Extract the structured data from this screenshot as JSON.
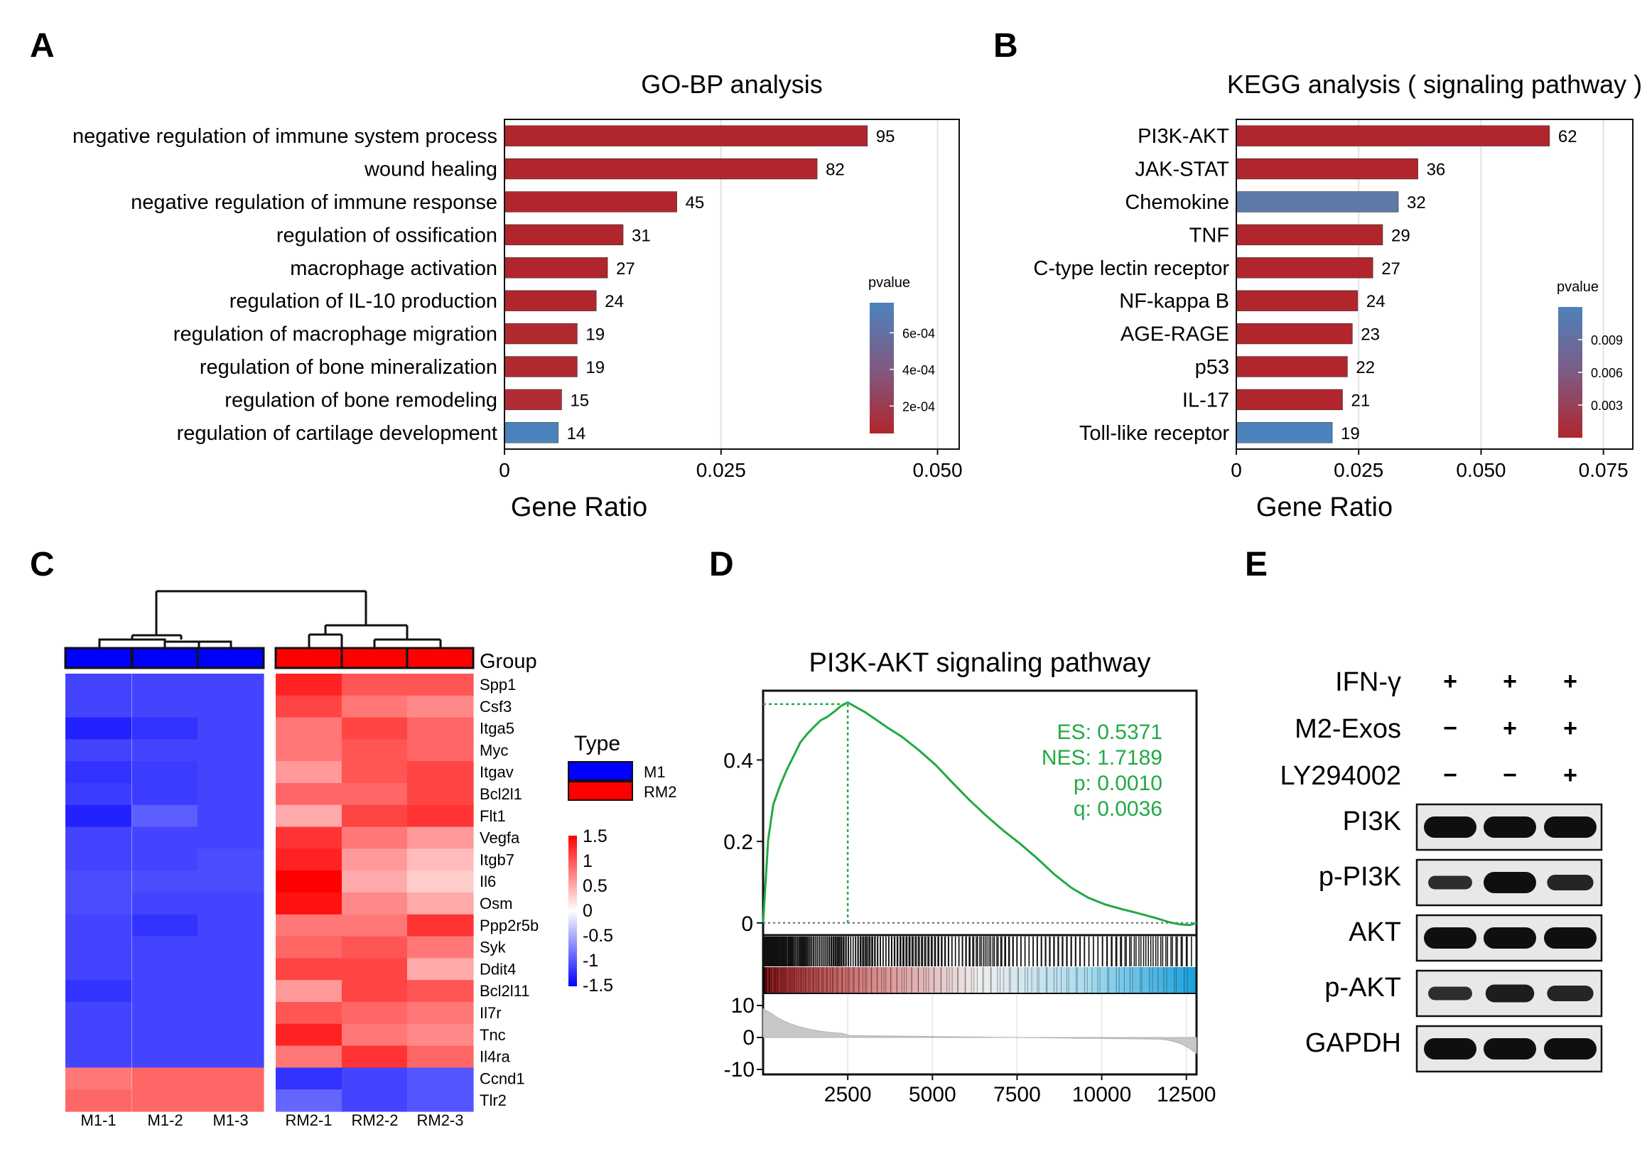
{
  "panel_labels": {
    "a": "A",
    "b": "B",
    "c": "C",
    "d": "D",
    "e": "E"
  },
  "chart_data": [
    {
      "id": "go",
      "type": "bar",
      "title": "GO-BP analysis",
      "xlabel": "Gene Ratio",
      "ylabel": "",
      "orientation": "horizontal",
      "xlim": [
        0,
        0.0525
      ],
      "xticks": [
        0,
        0.025,
        0.05
      ],
      "xtick_labels": [
        "0",
        "0.025",
        "0.050"
      ],
      "categories": [
        "negative regulation of immune system process",
        "wound healing",
        "negative regulation of immune response",
        "regulation of ossification",
        "macrophage activation",
        "regulation of IL-10 production",
        "regulation of macrophage migration",
        "regulation of bone mineralization",
        "regulation of bone remodeling",
        "regulation of cartilage development"
      ],
      "values": [
        0.0419,
        0.0361,
        0.0199,
        0.0137,
        0.0119,
        0.0106,
        0.0084,
        0.0084,
        0.0066,
        0.0062
      ],
      "counts": [
        "95",
        "82",
        "45",
        "31",
        "27",
        "24",
        "19",
        "19",
        "15",
        "14"
      ],
      "bar_colors": [
        "#b0262c",
        "#b0262c",
        "#b0262c",
        "#b0262c",
        "#b0262c",
        "#b0262c",
        "#b12a30",
        "#b12a30",
        "#b22d33",
        "#4c83bc"
      ],
      "legend": {
        "title": "pvalue",
        "labels": [
          "6e-04",
          "4e-04",
          "2e-04"
        ],
        "stops": [
          0.23,
          0.51,
          0.79
        ],
        "colors": [
          "#4c83bc",
          "#b0262c"
        ],
        "position": "right"
      },
      "grid": true
    },
    {
      "id": "kegg",
      "type": "bar",
      "title": "KEGG analysis ( signaling pathway )",
      "xlabel": "Gene Ratio",
      "ylabel": "",
      "orientation": "horizontal",
      "xlim": [
        0,
        0.081
      ],
      "xticks": [
        0,
        0.025,
        0.05,
        0.075
      ],
      "xtick_labels": [
        "0",
        "0.025",
        "0.050",
        "0.075"
      ],
      "categories": [
        "PI3K-AKT",
        "JAK-STAT",
        "Chemokine",
        "TNF",
        "C-type lectin receptor",
        "NF-kappa B",
        "AGE-RAGE",
        "p53",
        "IL-17",
        "Toll-like receptor"
      ],
      "values": [
        0.064,
        0.0371,
        0.0331,
        0.0299,
        0.0279,
        0.0248,
        0.0237,
        0.0227,
        0.0217,
        0.0196
      ],
      "counts": [
        "62",
        "36",
        "32",
        "29",
        "27",
        "24",
        "23",
        "22",
        "21",
        "19"
      ],
      "bar_colors": [
        "#b0262c",
        "#b0262c",
        "#5d7aa8",
        "#b0262c",
        "#b0262c",
        "#b0262c",
        "#b0262c",
        "#b0262c",
        "#b0262c",
        "#4c83bc"
      ],
      "legend": {
        "title": "pvalue",
        "labels": [
          "0.009",
          "0.006",
          "0.003"
        ],
        "stops": [
          0.25,
          0.5,
          0.75
        ],
        "colors": [
          "#4c83bc",
          "#b0262c"
        ],
        "position": "right"
      },
      "grid": true
    },
    {
      "id": "heatmap",
      "type": "heatmap",
      "rows": [
        "Spp1",
        "Csf3",
        "Itga5",
        "Myc",
        "Itgav",
        "Bcl2l1",
        "Flt1",
        "Vegfa",
        "Itgb7",
        "Il6",
        "Osm",
        "Ppp2r5b",
        "Syk",
        "Ddit4",
        "Bcl2l11",
        "Il7r",
        "Tnc",
        "Il4ra",
        "Ccnd1",
        "Tlr2"
      ],
      "columns": [
        "M1-1",
        "M1-2",
        "M1-3",
        "RM2-1",
        "RM2-2",
        "RM2-3"
      ],
      "values": [
        [
          -1.1,
          -1.1,
          -1.1,
          1.3,
          1.0,
          1.0
        ],
        [
          -1.1,
          -1.1,
          -1.1,
          1.1,
          0.8,
          0.7
        ],
        [
          -1.3,
          -1.2,
          -1.1,
          0.8,
          1.1,
          0.9
        ],
        [
          -1.1,
          -1.1,
          -1.1,
          0.8,
          1.0,
          0.9
        ],
        [
          -1.2,
          -1.15,
          -1.1,
          0.6,
          1.0,
          1.1
        ],
        [
          -1.15,
          -1.15,
          -1.1,
          0.9,
          0.9,
          1.1
        ],
        [
          -1.3,
          -0.95,
          -1.1,
          0.5,
          1.1,
          1.2
        ],
        [
          -1.1,
          -1.1,
          -1.1,
          1.2,
          0.8,
          0.6
        ],
        [
          -1.1,
          -1.1,
          -1.05,
          1.3,
          0.6,
          0.4
        ],
        [
          -1.05,
          -1.05,
          -1.05,
          1.5,
          0.5,
          0.3
        ],
        [
          -1.05,
          -1.1,
          -1.1,
          1.4,
          0.7,
          0.5
        ],
        [
          -1.1,
          -1.2,
          -1.1,
          0.8,
          0.8,
          1.2
        ],
        [
          -1.1,
          -1.1,
          -1.1,
          0.9,
          1.0,
          0.8
        ],
        [
          -1.1,
          -1.1,
          -1.1,
          1.1,
          1.1,
          0.5
        ],
        [
          -1.2,
          -1.1,
          -1.1,
          0.6,
          1.1,
          1.0
        ],
        [
          -1.1,
          -1.1,
          -1.1,
          1.0,
          0.9,
          0.8
        ],
        [
          -1.1,
          -1.1,
          -1.1,
          1.3,
          0.8,
          0.7
        ],
        [
          -1.1,
          -1.1,
          -1.1,
          0.8,
          1.2,
          0.9
        ],
        [
          0.8,
          0.9,
          0.9,
          -1.2,
          -1.1,
          -1.0
        ],
        [
          0.9,
          0.9,
          0.9,
          -0.9,
          -1.1,
          -1.0
        ]
      ],
      "group_label": "Group",
      "groups": [
        "M1",
        "M1",
        "M1",
        "RM2",
        "RM2",
        "RM2"
      ],
      "group_colors": {
        "M1": "#0000ff",
        "RM2": "#ff0000"
      },
      "legend_title": "Type",
      "legend_items": [
        "M1",
        "RM2"
      ],
      "color_scale": {
        "labels": [
          "1.5",
          "1",
          "0.5",
          "0",
          "-0.5",
          "-1",
          "-1.5"
        ],
        "min": -1.5,
        "max": 1.5,
        "colors": [
          "#0000ff",
          "#ffffff",
          "#ff0000"
        ]
      }
    },
    {
      "id": "gsea",
      "type": "line",
      "title": "PI3K-AKT signaling pathway",
      "xlabel": "",
      "ylabel": "",
      "xlim": [
        0,
        12800
      ],
      "ylim": [
        -0.03,
        0.57
      ],
      "yticks": [
        0,
        0.2,
        0.4
      ],
      "ytick_labels": [
        "0",
        "0.2",
        "0.4"
      ],
      "xticks": [
        2500,
        5000,
        7500,
        10000,
        12500
      ],
      "xtick_labels": [
        "2500",
        "5000",
        "7500",
        "10000",
        "12500"
      ],
      "series": [
        {
          "color": "#22aa44",
          "x": [
            0,
            60,
            150,
            300,
            500,
            700,
            900,
            1100,
            1300,
            1500,
            1700,
            1900,
            2100,
            2300,
            2500,
            2700,
            3000,
            3300,
            3700,
            4100,
            4600,
            5100,
            5600,
            6100,
            6600,
            7100,
            7600,
            8100,
            8600,
            9100,
            9600,
            10100,
            10600,
            11100,
            11600,
            12000,
            12300,
            12600,
            12800
          ],
          "y": [
            0.0,
            0.08,
            0.2,
            0.29,
            0.34,
            0.38,
            0.41,
            0.44,
            0.46,
            0.48,
            0.5,
            0.51,
            0.52,
            0.53,
            0.5371,
            0.53,
            0.52,
            0.505,
            0.48,
            0.455,
            0.42,
            0.385,
            0.345,
            0.305,
            0.265,
            0.225,
            0.19,
            0.155,
            0.12,
            0.09,
            0.065,
            0.045,
            0.03,
            0.02,
            0.012,
            0.005,
            0.0,
            -0.005,
            0.0
          ]
        }
      ],
      "peak_x": 2500,
      "es_line": 0.5371,
      "stats": [
        "ES: 0.5371",
        "NES: 1.7189",
        "p: 0.0010",
        "q: 0.0036"
      ],
      "ranked_ylim": [
        -10,
        10
      ],
      "ranked_yticks": [
        10,
        0,
        -10
      ],
      "ranked_ytick_labels": [
        "10",
        "0",
        "-10"
      ]
    }
  ],
  "western_blot": {
    "treatments": [
      {
        "label": "IFN-γ",
        "marks": [
          "+",
          "+",
          "+"
        ]
      },
      {
        "label": "M2-Exos",
        "marks": [
          "−",
          "+",
          "+"
        ]
      },
      {
        "label": "LY294002",
        "marks": [
          "−",
          "−",
          "+"
        ]
      }
    ],
    "proteins": [
      {
        "label": "PI3K",
        "intensity": [
          1.0,
          1.0,
          1.0
        ]
      },
      {
        "label": "p-PI3K",
        "intensity": [
          0.45,
          1.0,
          0.6
        ]
      },
      {
        "label": "AKT",
        "intensity": [
          1.0,
          1.0,
          1.0
        ]
      },
      {
        "label": "p-AKT",
        "intensity": [
          0.45,
          0.75,
          0.6
        ]
      },
      {
        "label": "GAPDH",
        "intensity": [
          1.0,
          1.0,
          1.0
        ]
      }
    ]
  }
}
